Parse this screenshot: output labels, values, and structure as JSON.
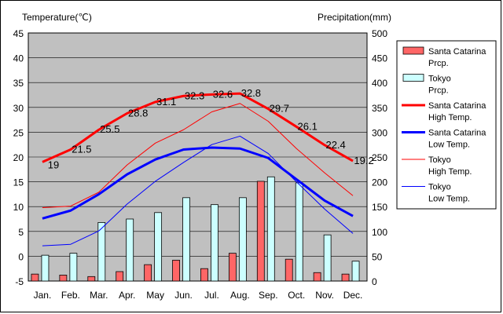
{
  "chart_data": {
    "type": "bar+line",
    "left_axis_title": "Temperature(℃)",
    "right_axis_title": "Precipitation(mm)",
    "categories": [
      "Jan.",
      "Feb.",
      "Mar.",
      "Apr.",
      "May",
      "Jun.",
      "Jul.",
      "Aug.",
      "Sep.",
      "Oct.",
      "Nov.",
      "Dec."
    ],
    "y_left": {
      "min": -5,
      "max": 45,
      "ticks": [
        -5,
        0,
        5,
        10,
        15,
        20,
        25,
        30,
        35,
        40,
        45
      ]
    },
    "y_right": {
      "min": 0,
      "max": 500,
      "ticks": [
        0,
        50,
        100,
        150,
        200,
        250,
        300,
        350,
        400,
        450,
        500
      ]
    },
    "bars": [
      {
        "name": "Santa Catarina Prcp.",
        "color": "#ff6666",
        "values": [
          14,
          12,
          9,
          19,
          33,
          42,
          25,
          56,
          201,
          44,
          17,
          14
        ]
      },
      {
        "name": "Tokyo Prcp.",
        "color": "#ccffff",
        "values": [
          52,
          56,
          118,
          125,
          138,
          168,
          154,
          168,
          210,
          198,
          93,
          40
        ]
      }
    ],
    "lines": [
      {
        "name": "Santa Catarina High Temp.",
        "color": "#ff0000",
        "width": 3,
        "values": [
          19,
          21.5,
          25.5,
          28.8,
          31.1,
          32.3,
          32.6,
          32.8,
          29.7,
          26.1,
          22.4,
          19.2
        ],
        "labeled": true
      },
      {
        "name": "Santa Catarina Low Temp.",
        "color": "#0000ff",
        "width": 3,
        "values": [
          7.6,
          9.2,
          12.5,
          16.5,
          19.5,
          21.5,
          21.9,
          21.7,
          19.8,
          15.5,
          11.2,
          8.1
        ],
        "labeled": false
      },
      {
        "name": "Tokyo High Temp.",
        "color": "#ff0000",
        "width": 1,
        "values": [
          9.8,
          10.1,
          12.9,
          18.4,
          22.8,
          25.5,
          29.1,
          30.8,
          27.2,
          21.7,
          16.8,
          12.2
        ],
        "labeled": false
      },
      {
        "name": "Tokyo Low Temp.",
        "color": "#0000ff",
        "width": 1,
        "values": [
          2.1,
          2.4,
          5.1,
          10.5,
          15.1,
          18.9,
          22.5,
          24.2,
          20.7,
          15.0,
          9.5,
          4.6
        ],
        "labeled": false
      }
    ],
    "data_labels": [
      "19",
      "21.5",
      "25.5",
      "28.8",
      "31.1",
      "32.3",
      "32.6",
      "32.8",
      "29.7",
      "26.1",
      "22.4",
      "19.2"
    ],
    "legend": [
      {
        "kind": "bar",
        "color": "#ff6666",
        "line1": "Santa Catarina",
        "line2": "Prcp."
      },
      {
        "kind": "bar",
        "color": "#ccffff",
        "line1": "Tokyo",
        "line2": "Prcp."
      },
      {
        "kind": "line",
        "color": "#ff0000",
        "width": 3,
        "line1": "Santa Catarina",
        "line2": "High Temp."
      },
      {
        "kind": "line",
        "color": "#0000ff",
        "width": 3,
        "line1": "Santa Catarina",
        "line2": "Low Temp."
      },
      {
        "kind": "line",
        "color": "#ff0000",
        "width": 1,
        "line1": "Tokyo",
        "line2": "High Temp."
      },
      {
        "kind": "line",
        "color": "#0000ff",
        "width": 1,
        "line1": "Tokyo",
        "line2": "Low Temp."
      }
    ],
    "legend_position": "right",
    "plot_background": "#c0c0c0",
    "grid": true
  }
}
